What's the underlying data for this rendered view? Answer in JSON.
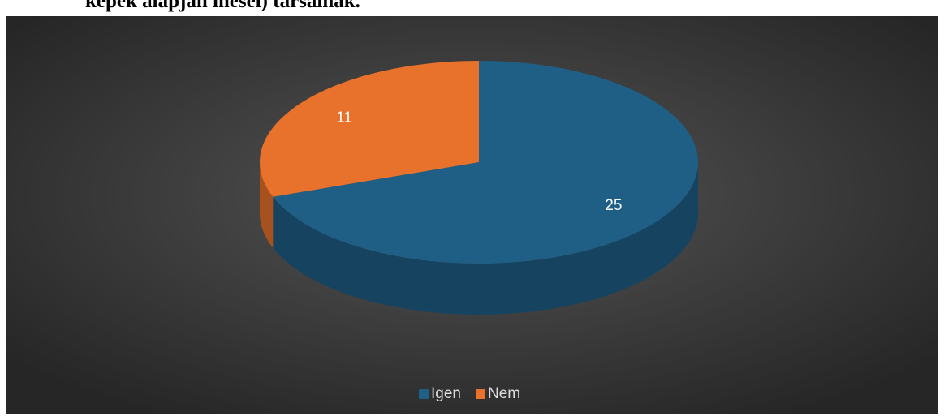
{
  "caption": "képek alapján mesél) társainak.",
  "chart_data": {
    "type": "pie",
    "categories": [
      "Igen",
      "Nem"
    ],
    "values": [
      25,
      11
    ],
    "colors": [
      "#1f5f86",
      "#e8712b"
    ],
    "legend": "bottom"
  }
}
